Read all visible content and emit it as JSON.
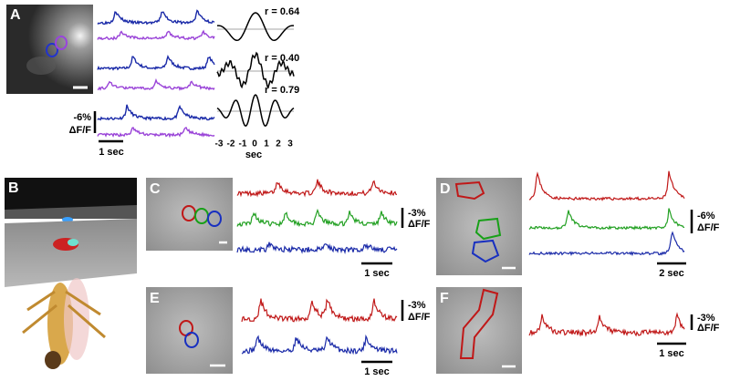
{
  "panels": {
    "A": {
      "label": "A",
      "correlations": [
        "r = 0.64",
        "r = 0.40",
        "r = 0.79"
      ],
      "scale_value": "-6%",
      "scale_unit": "ΔF/F",
      "time_scale": "1 sec",
      "lag_ticks": [
        "-3",
        "-2",
        "-1",
        "0",
        "1",
        "2",
        "3"
      ],
      "lag_axis_label": "sec"
    },
    "B": {
      "label": "B"
    },
    "C": {
      "label": "C",
      "scale_value": "-3%",
      "scale_unit": "ΔF/F",
      "time_scale": "1 sec"
    },
    "D": {
      "label": "D",
      "scale_value": "-6%",
      "scale_unit": "ΔF/F",
      "time_scale": "2 sec"
    },
    "E": {
      "label": "E",
      "scale_value": "-3%",
      "scale_unit": "ΔF/F",
      "time_scale": "1 sec"
    },
    "F": {
      "label": "F",
      "scale_value": "-3%",
      "scale_unit": "ΔF/F",
      "time_scale": "1 sec"
    }
  }
}
